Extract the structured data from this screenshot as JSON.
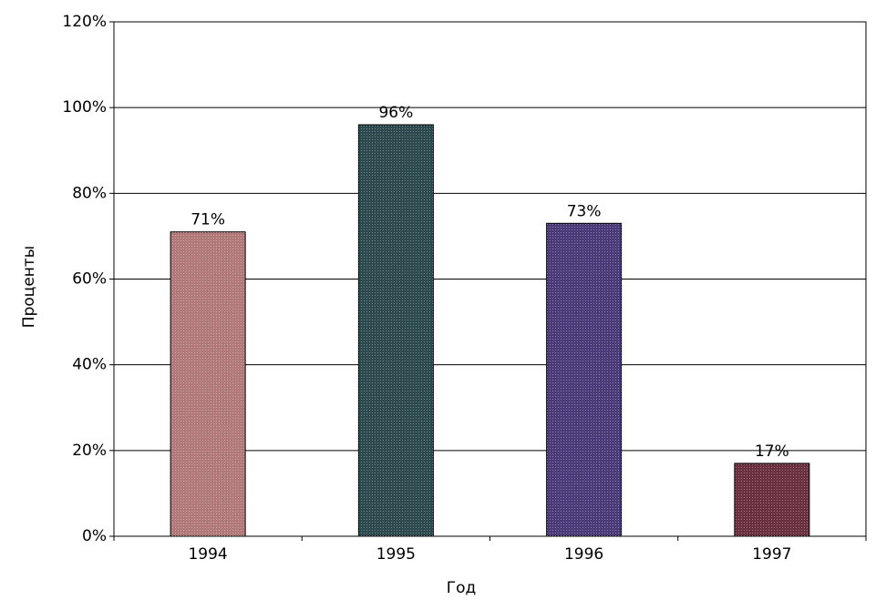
{
  "chart_data": {
    "type": "bar",
    "x_label": "Год",
    "y_label": "Проценты",
    "categories": [
      "1994",
      "1995",
      "1996",
      "1997"
    ],
    "values": [
      71,
      96,
      73,
      17
    ],
    "value_labels": [
      "71%",
      "96%",
      "73%",
      "17%"
    ],
    "colors": [
      "#b07878",
      "#2c4a4e",
      "#4a3a78",
      "#6a3040"
    ],
    "ylim": [
      0,
      120
    ],
    "yticks": [
      {
        "value": 0,
        "label": "0%"
      },
      {
        "value": 20,
        "label": "20%"
      },
      {
        "value": 40,
        "label": "40%"
      },
      {
        "value": 60,
        "label": "60%"
      },
      {
        "value": 80,
        "label": "80%"
      },
      {
        "value": 100,
        "label": "100%"
      },
      {
        "value": 120,
        "label": "120%"
      }
    ],
    "grid": true
  }
}
